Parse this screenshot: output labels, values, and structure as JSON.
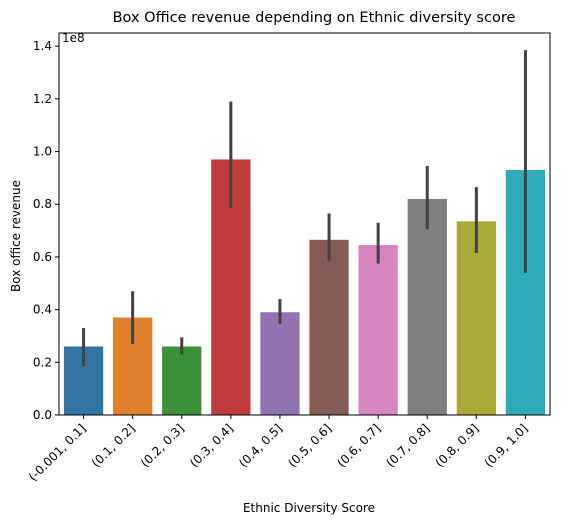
{
  "chart_data": {
    "type": "bar",
    "title": "Box Office revenue depending on Ethnic diversity score",
    "xlabel": "Ethnic Diversity Score",
    "ylabel": "Box office revenue",
    "offset_text": "1e8",
    "ylim": [
      0,
      1.45
    ],
    "yticks": [
      0.0,
      0.2,
      0.4,
      0.6,
      0.8,
      1.0,
      1.2,
      1.4
    ],
    "ytick_labels": [
      "0.0",
      "0.2",
      "0.4",
      "0.6",
      "0.8",
      "1.0",
      "1.2",
      "1.4"
    ],
    "grid": false,
    "categories": [
      "(-0.001, 0.1]",
      "(0.1, 0.2]",
      "(0.2, 0.3]",
      "(0.3, 0.4]",
      "(0.4, 0.5]",
      "(0.5, 0.6]",
      "(0.6, 0.7]",
      "(0.7, 0.8]",
      "(0.8, 0.9]",
      "(0.9, 1.0]"
    ],
    "values": [
      0.26,
      0.37,
      0.26,
      0.97,
      0.39,
      0.665,
      0.645,
      0.82,
      0.735,
      0.93
    ],
    "error_low": [
      0.185,
      0.27,
      0.23,
      0.785,
      0.345,
      0.585,
      0.575,
      0.705,
      0.615,
      0.54
    ],
    "error_high": [
      0.33,
      0.47,
      0.295,
      1.19,
      0.44,
      0.765,
      0.73,
      0.945,
      0.865,
      1.385
    ],
    "colors": [
      "#3274a1",
      "#e1812c",
      "#3a923a",
      "#c03d3e",
      "#9372b2",
      "#845b53",
      "#d684bd",
      "#7f7f7f",
      "#a9aa35",
      "#2eabb8"
    ],
    "error_color": "#424242"
  }
}
